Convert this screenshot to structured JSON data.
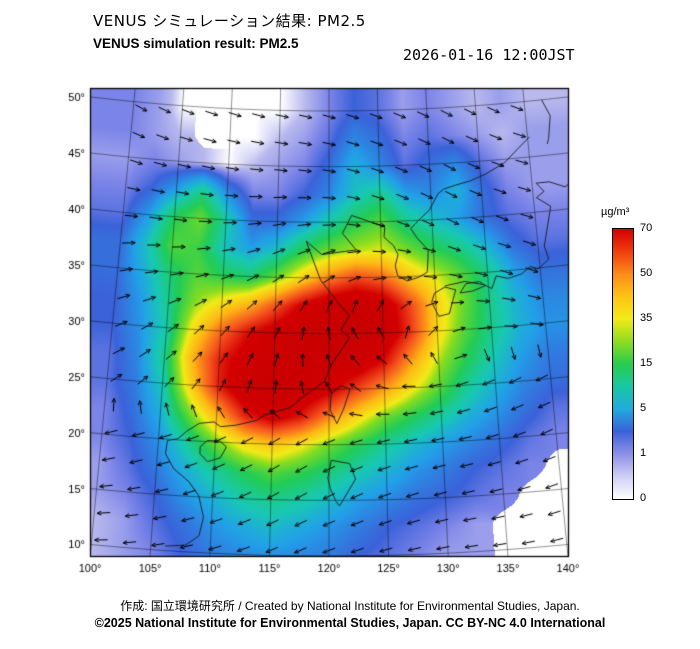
{
  "header": {
    "title_jp": "VENUS シミュレーション結果: PM2.5",
    "title_en": "VENUS simulation result: PM2.5",
    "timestamp": "2026-01-16 12:00JST"
  },
  "footer": {
    "credit": "作成: 国立環境研究所 / Created by National Institute for Environmental Studies, Japan.",
    "license": "©2025 National Institute for Environmental Studies, Japan. CC BY-NC 4.0 International"
  },
  "chart_data": {
    "type": "heatmap",
    "title": "VENUS simulation result: PM2.5",
    "units_label": "µg/m³",
    "lon_range": [
      100,
      140
    ],
    "lat_range": [
      10,
      50
    ],
    "lon_ticks": {
      "values": [
        100,
        105,
        110,
        115,
        120,
        125,
        130,
        135,
        140
      ],
      "labels": [
        "100°",
        "105°",
        "110°",
        "115°",
        "120°",
        "125°",
        "130°",
        "135°",
        "140°"
      ]
    },
    "lat_ticks": {
      "values": [
        50,
        45,
        40,
        35,
        30,
        25,
        20,
        15,
        10
      ],
      "labels": [
        "50°",
        "45°",
        "40°",
        "35°",
        "30°",
        "25°",
        "20°",
        "15°",
        "10°"
      ]
    },
    "colorbar": {
      "tick_labels": [
        "70",
        "50",
        "35",
        "15",
        "5",
        "1",
        "0"
      ],
      "tick_values": [
        70,
        50,
        35,
        15,
        5,
        1,
        0
      ],
      "gradient_stops": [
        {
          "p": 0,
          "c": "#d40000"
        },
        {
          "p": 8,
          "c": "#ef3a0d"
        },
        {
          "p": 16.7,
          "c": "#fb8c1a"
        },
        {
          "p": 25,
          "c": "#ffc414"
        },
        {
          "p": 33.3,
          "c": "#f2ea18"
        },
        {
          "p": 41.7,
          "c": "#8fdc22"
        },
        {
          "p": 50,
          "c": "#28cc4e"
        },
        {
          "p": 58.3,
          "c": "#18c8a4"
        },
        {
          "p": 66.7,
          "c": "#21aade"
        },
        {
          "p": 75,
          "c": "#3b62d9"
        },
        {
          "p": 83.3,
          "c": "#8c90e6"
        },
        {
          "p": 91.7,
          "c": "#cfcff4"
        },
        {
          "p": 100,
          "c": "#ffffff"
        }
      ]
    },
    "colorscale": [
      {
        "v": 0,
        "c": "#ffffff"
      },
      {
        "v": 1,
        "c": "#b9b9ee"
      },
      {
        "v": 3,
        "c": "#7b84e8"
      },
      {
        "v": 5,
        "c": "#3b62d9"
      },
      {
        "v": 10,
        "c": "#22a0e8"
      },
      {
        "v": 15,
        "c": "#18c8b4"
      },
      {
        "v": 22,
        "c": "#22cc55"
      },
      {
        "v": 30,
        "c": "#86dd1f"
      },
      {
        "v": 35,
        "c": "#f2ea18"
      },
      {
        "v": 45,
        "c": "#ffb515"
      },
      {
        "v": 50,
        "c": "#fb8c1a"
      },
      {
        "v": 58,
        "c": "#f4511e"
      },
      {
        "v": 70,
        "c": "#d40000"
      },
      {
        "v": 95,
        "c": "#c00000"
      }
    ],
    "pm25_grid": {
      "lon0": 100,
      "dlon": 2.5,
      "lat0": 50,
      "dlat": 2.5,
      "values": [
        [
          3,
          2,
          0,
          null,
          null,
          null,
          0,
          1,
          3,
          5,
          4,
          2,
          3,
          2,
          1,
          2,
          1
        ],
        [
          3,
          2,
          1,
          null,
          null,
          0,
          1,
          2,
          4,
          8,
          6,
          3,
          4,
          3,
          2,
          1,
          2
        ],
        [
          2,
          3,
          2,
          1,
          0,
          1,
          2,
          3,
          6,
          12,
          8,
          4,
          6,
          8,
          4,
          2,
          2
        ],
        [
          3,
          5,
          10,
          18,
          8,
          3,
          3,
          5,
          8,
          14,
          18,
          10,
          8,
          12,
          6,
          3,
          2
        ],
        [
          4,
          10,
          22,
          28,
          16,
          6,
          6,
          10,
          16,
          22,
          26,
          18,
          14,
          10,
          6,
          4,
          3
        ],
        [
          6,
          14,
          26,
          24,
          14,
          10,
          14,
          22,
          28,
          32,
          34,
          28,
          22,
          18,
          12,
          6,
          4
        ],
        [
          6,
          12,
          20,
          26,
          22,
          20,
          28,
          40,
          52,
          60,
          55,
          42,
          34,
          26,
          18,
          10,
          6
        ],
        [
          5,
          10,
          18,
          30,
          38,
          45,
          58,
          72,
          80,
          82,
          78,
          60,
          40,
          28,
          18,
          12,
          8
        ],
        [
          5,
          9,
          16,
          38,
          55,
          68,
          76,
          82,
          84,
          85,
          80,
          62,
          38,
          26,
          18,
          12,
          9
        ],
        [
          4,
          8,
          18,
          45,
          65,
          76,
          82,
          84,
          82,
          78,
          68,
          48,
          32,
          22,
          15,
          10,
          7
        ],
        [
          4,
          7,
          15,
          40,
          65,
          80,
          84,
          80,
          72,
          60,
          48,
          36,
          26,
          17,
          12,
          8,
          6
        ],
        [
          3,
          6,
          12,
          28,
          45,
          65,
          74,
          66,
          50,
          38,
          28,
          22,
          17,
          12,
          9,
          6,
          4
        ],
        [
          3,
          5,
          9,
          17,
          28,
          38,
          42,
          36,
          28,
          22,
          17,
          13,
          10,
          8,
          6,
          4,
          3
        ],
        [
          2,
          4,
          7,
          12,
          17,
          22,
          26,
          23,
          19,
          15,
          12,
          9,
          7,
          5,
          4,
          3,
          null
        ],
        [
          2,
          3,
          5,
          9,
          12,
          16,
          18,
          16,
          13,
          10,
          8,
          6,
          5,
          4,
          3,
          null,
          null
        ],
        [
          1,
          2,
          4,
          6,
          9,
          11,
          13,
          11,
          9,
          7,
          5,
          4,
          3,
          2,
          null,
          null,
          null
        ],
        [
          1,
          2,
          3,
          5,
          7,
          8,
          9,
          8,
          7,
          5,
          4,
          3,
          2,
          2,
          null,
          null,
          null
        ]
      ]
    },
    "wind": {
      "lon0": 100,
      "dlon": 4,
      "lat0": 50,
      "dlat": 5,
      "angles_deg": [
        [
          -25,
          -20,
          -15,
          -15,
          -10,
          -15,
          -20,
          -25,
          -30,
          -30,
          -25
        ],
        [
          -15,
          -10,
          -10,
          -5,
          -5,
          -10,
          -20,
          -25,
          -30,
          -25,
          -20
        ],
        [
          0,
          -5,
          0,
          5,
          10,
          0,
          -15,
          -25,
          -30,
          -25,
          -20
        ],
        [
          15,
          10,
          15,
          25,
          35,
          30,
          10,
          -5,
          -15,
          -20,
          -25
        ],
        [
          25,
          35,
          45,
          55,
          70,
          100,
          130,
          60,
          15,
          -5,
          -15
        ],
        [
          35,
          45,
          55,
          70,
          90,
          120,
          160,
          185,
          195,
          200,
          200
        ],
        [
          200,
          200,
          205,
          210,
          215,
          205,
          195,
          190,
          190,
          195,
          200
        ],
        [
          190,
          195,
          200,
          205,
          210,
          205,
          200,
          195,
          190,
          190,
          195
        ],
        [
          185,
          190,
          195,
          200,
          205,
          200,
          195,
          190,
          185,
          185,
          190
        ]
      ]
    },
    "coastlines": [
      [
        [
          124.3,
          39.9
        ],
        [
          122.2,
          40.6
        ],
        [
          121.3,
          39.0
        ],
        [
          122.6,
          37.5
        ],
        [
          119.3,
          37.1
        ],
        [
          117.8,
          38.3
        ],
        [
          119.2,
          34.8
        ],
        [
          120.9,
          32.7
        ],
        [
          121.9,
          31.6
        ],
        [
          121.1,
          30.3
        ],
        [
          121.9,
          29.6
        ],
        [
          120.2,
          27.2
        ],
        [
          119.6,
          25.7
        ],
        [
          117.8,
          24.4
        ],
        [
          116.5,
          23.3
        ],
        [
          114.3,
          22.6
        ],
        [
          113.6,
          22.1
        ],
        [
          111.8,
          21.6
        ],
        [
          110.4,
          21.4
        ],
        [
          109.8,
          21.8
        ],
        [
          108.5,
          21.6
        ],
        [
          107.4,
          20.8
        ],
        [
          106.7,
          20.1
        ],
        [
          105.8,
          19.9
        ],
        [
          105.7,
          18.7
        ],
        [
          106.5,
          17.4
        ],
        [
          107.9,
          16.3
        ],
        [
          108.8,
          15.1
        ],
        [
          109.3,
          13.2
        ],
        [
          109.0,
          11.5
        ],
        [
          107.9,
          10.6
        ],
        [
          106.2,
          10.4
        ]
      ],
      [
        [
          124.3,
          39.9
        ],
        [
          125.4,
          39.5
        ],
        [
          125.3,
          38.6
        ],
        [
          126.2,
          37.8
        ],
        [
          126.6,
          37.0
        ],
        [
          126.3,
          36.0
        ],
        [
          126.5,
          35.1
        ],
        [
          127.4,
          34.6
        ],
        [
          128.5,
          34.9
        ],
        [
          129.3,
          35.3
        ],
        [
          129.4,
          36.1
        ],
        [
          129.5,
          37.3
        ],
        [
          128.5,
          38.4
        ],
        [
          127.9,
          39.3
        ],
        [
          128.7,
          40.0
        ],
        [
          129.8,
          40.9
        ],
        [
          130.7,
          42.3
        ],
        [
          131.3,
          42.7
        ],
        [
          132.5,
          43.0
        ],
        [
          134.0,
          43.3
        ],
        [
          135.5,
          43.8
        ],
        [
          137.5,
          44.7
        ],
        [
          139.0,
          45.9
        ],
        [
          140.2,
          46.8
        ]
      ],
      [
        [
          130.2,
          31.3
        ],
        [
          129.6,
          32.6
        ],
        [
          129.9,
          33.4
        ],
        [
          130.9,
          33.9
        ],
        [
          131.9,
          33.6
        ],
        [
          131.2,
          31.5
        ],
        [
          130.2,
          31.3
        ]
      ],
      [
        [
          130.9,
          34.0
        ],
        [
          132.8,
          34.3
        ],
        [
          134.6,
          33.9
        ],
        [
          135.3,
          33.5
        ],
        [
          135.8,
          34.6
        ],
        [
          136.9,
          34.3
        ],
        [
          138.2,
          34.6
        ],
        [
          139.1,
          35.2
        ],
        [
          139.8,
          34.9
        ],
        [
          140.9,
          35.7
        ],
        [
          140.6,
          36.9
        ],
        [
          141.0,
          38.3
        ],
        [
          141.6,
          40.4
        ],
        [
          140.3,
          41.3
        ],
        [
          141.1,
          41.8
        ],
        [
          140.4,
          42.6
        ],
        [
          141.7,
          42.6
        ],
        [
          143.2,
          42.0
        ],
        [
          145.0,
          43.0
        ]
      ],
      [
        [
          132.3,
          33.3
        ],
        [
          133.5,
          33.4
        ],
        [
          134.7,
          33.8
        ],
        [
          134.2,
          34.2
        ],
        [
          132.9,
          34.1
        ],
        [
          132.3,
          33.3
        ]
      ],
      [
        [
          121.1,
          25.3
        ],
        [
          121.9,
          25.0
        ],
        [
          121.3,
          23.2
        ],
        [
          120.7,
          21.9
        ],
        [
          120.1,
          23.1
        ],
        [
          120.2,
          24.6
        ],
        [
          121.1,
          25.3
        ]
      ],
      [
        [
          108.7,
          19.5
        ],
        [
          109.3,
          20.1
        ],
        [
          110.4,
          20.1
        ],
        [
          111.0,
          19.6
        ],
        [
          110.5,
          18.6
        ],
        [
          109.4,
          18.2
        ],
        [
          108.7,
          18.9
        ],
        [
          108.7,
          19.5
        ]
      ],
      [
        [
          120.2,
          18.6
        ],
        [
          121.8,
          18.3
        ],
        [
          122.3,
          16.9
        ],
        [
          121.6,
          15.7
        ],
        [
          120.9,
          14.5
        ],
        [
          120.6,
          14.9
        ],
        [
          120.1,
          16.1
        ],
        [
          119.9,
          17.0
        ],
        [
          120.2,
          18.6
        ]
      ],
      [
        [
          141.8,
          50.0
        ],
        [
          142.5,
          48.5
        ],
        [
          142.1,
          46.5
        ],
        [
          141.9,
          46.0
        ]
      ]
    ]
  }
}
